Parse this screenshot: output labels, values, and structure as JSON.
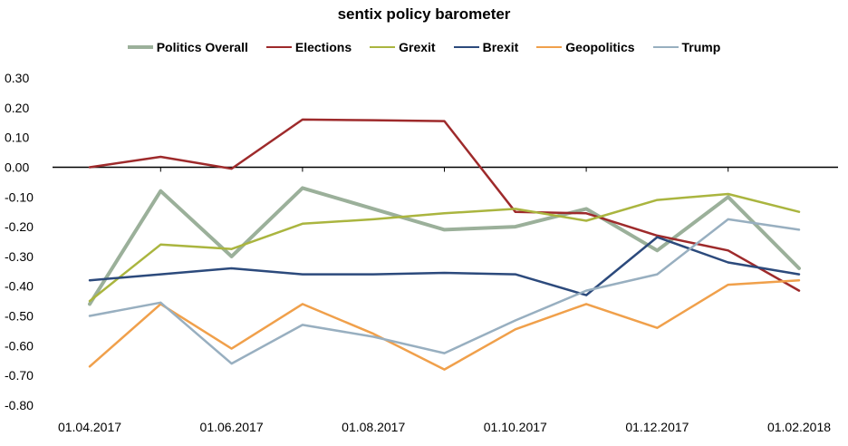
{
  "chart_data": {
    "type": "line",
    "title": "sentix policy barometer",
    "x": [
      "01.04.2017",
      "01.05.2017",
      "01.06.2017",
      "01.07.2017",
      "01.08.2017",
      "01.09.2017",
      "01.10.2017",
      "01.11.2017",
      "01.12.2017",
      "01.01.2018",
      "01.02.2018"
    ],
    "xticks": [
      "01.04.2017",
      "01.06.2017",
      "01.08.2017",
      "01.10.2017",
      "01.12.2017",
      "01.02.2018"
    ],
    "ylim": [
      -0.8,
      0.3
    ],
    "yticks": [
      "0.30",
      "0.20",
      "0.10",
      "0.00",
      "-0.10",
      "-0.20",
      "-0.30",
      "-0.40",
      "-0.50",
      "-0.60",
      "-0.70",
      "-0.80"
    ],
    "legend_position": "top",
    "grid": false,
    "series": [
      {
        "name": "Politics Overall",
        "color": "#9bb09a",
        "width": 4,
        "values": [
          -0.46,
          -0.08,
          -0.3,
          -0.07,
          -0.14,
          -0.21,
          -0.2,
          -0.14,
          -0.28,
          -0.1,
          -0.34
        ]
      },
      {
        "name": "Elections",
        "color": "#9e2a2b",
        "width": 2.5,
        "values": [
          0.0,
          0.035,
          -0.005,
          0.16,
          0.158,
          0.155,
          -0.15,
          -0.155,
          -0.23,
          -0.28,
          -0.415
        ]
      },
      {
        "name": "Grexit",
        "color": "#aab53f",
        "width": 2.5,
        "values": [
          -0.45,
          -0.26,
          -0.275,
          -0.19,
          -0.175,
          -0.155,
          -0.14,
          -0.18,
          -0.11,
          -0.09,
          -0.15
        ]
      },
      {
        "name": "Brexit",
        "color": "#2c4a7c",
        "width": 2.5,
        "values": [
          -0.38,
          -0.36,
          -0.34,
          -0.36,
          -0.36,
          -0.355,
          -0.36,
          -0.43,
          -0.235,
          -0.32,
          -0.36
        ]
      },
      {
        "name": "Geopolitics",
        "color": "#f0a04b",
        "width": 2.5,
        "values": [
          -0.67,
          -0.46,
          -0.61,
          -0.46,
          -0.56,
          -0.68,
          -0.545,
          -0.46,
          -0.54,
          -0.395,
          -0.38
        ]
      },
      {
        "name": "Trump",
        "color": "#98afc0",
        "width": 2.5,
        "values": [
          -0.5,
          -0.455,
          -0.66,
          -0.53,
          -0.57,
          -0.625,
          -0.515,
          -0.415,
          -0.36,
          -0.175,
          -0.21
        ]
      }
    ]
  }
}
